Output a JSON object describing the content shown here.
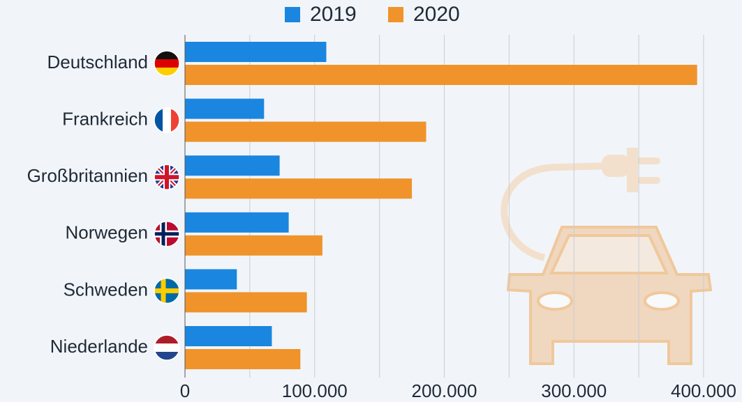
{
  "chart_data": {
    "type": "barh",
    "categories": [
      "Deutschland",
      "Frankreich",
      "Großbritannien",
      "Norwegen",
      "Schweden",
      "Niederlande"
    ],
    "series": [
      {
        "name": "2019",
        "color": "#1a86e0",
        "values": [
          109000,
          61000,
          73000,
          80000,
          40000,
          67000
        ]
      },
      {
        "name": "2020",
        "color": "#f0932b",
        "values": [
          395000,
          186000,
          175000,
          106000,
          94000,
          89000
        ]
      }
    ],
    "xlim": [
      0,
      430000
    ],
    "xticks": [
      0,
      {
        "value": 100000,
        "label": "100.000"
      },
      {
        "value": 200000,
        "label": "200.000"
      },
      {
        "value": 300000,
        "label": "300.000"
      },
      {
        "value": 400000,
        "label": "400.000"
      }
    ],
    "minor_xticks": [
      50000,
      150000,
      250000,
      350000
    ],
    "grid": true
  }
}
